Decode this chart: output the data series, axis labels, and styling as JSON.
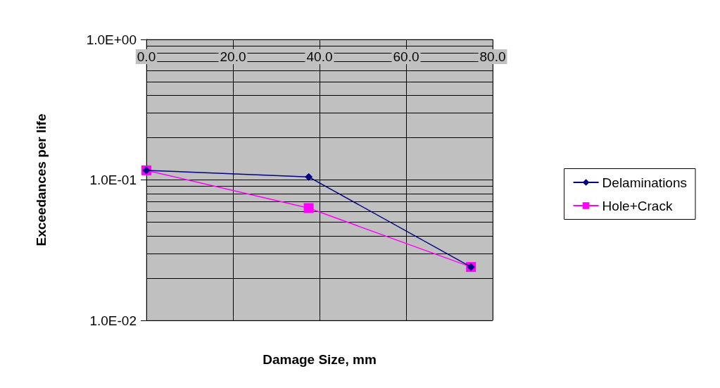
{
  "chart_data": {
    "type": "line",
    "xlabel": "Damage Size, mm",
    "ylabel": "Exceedances per life",
    "x": [
      0,
      37.5,
      75
    ],
    "series": [
      {
        "name": "Delaminations",
        "color": "#000080",
        "marker": "diamond",
        "values": [
          0.117,
          0.105,
          0.024
        ]
      },
      {
        "name": "Hole+Crack",
        "color": "#ff00ff",
        "marker": "square",
        "values": [
          0.117,
          0.063,
          0.024
        ]
      }
    ],
    "xlim": [
      0,
      80
    ],
    "xticks": [
      {
        "value": 0,
        "label": "0.0"
      },
      {
        "value": 20,
        "label": "20.0"
      },
      {
        "value": 40,
        "label": "40.0"
      },
      {
        "value": 60,
        "label": "60.0"
      },
      {
        "value": 80,
        "label": "80.0"
      }
    ],
    "ylim": [
      0.01,
      1
    ],
    "yticks": [
      {
        "value": 0.01,
        "label": "1.0E-02"
      },
      {
        "value": 0.1,
        "label": "1.0E-01"
      },
      {
        "value": 1,
        "label": "1.0E+00"
      }
    ],
    "log": "y",
    "grid": true,
    "legend": "right"
  }
}
